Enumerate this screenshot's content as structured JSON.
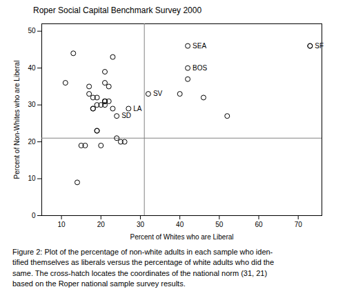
{
  "chart_data": {
    "type": "scatter",
    "title": "Roper Social Capital Benchmark Survey 2000",
    "xlabel": "Percent of Whites who are Liberal",
    "ylabel": "Percent of Non-Whites who are Liberal",
    "xlim": [
      5,
      76
    ],
    "ylim": [
      0,
      52
    ],
    "xticks": [
      10,
      20,
      30,
      40,
      50,
      60,
      70
    ],
    "yticks": [
      0,
      10,
      20,
      30,
      40,
      50
    ],
    "grid": false,
    "color": "#000000",
    "marker": "open circle",
    "x": [
      11,
      13,
      14,
      15,
      16,
      17,
      17,
      18,
      18,
      18,
      19,
      19,
      19,
      19,
      20,
      20,
      21,
      21,
      21,
      21,
      21,
      21,
      22,
      22,
      23,
      23,
      24,
      25,
      26,
      40,
      42,
      46,
      52,
      73
    ],
    "values": [
      36,
      44,
      9,
      19,
      19,
      35,
      33,
      32,
      29,
      29,
      32,
      30,
      23,
      23,
      30,
      19,
      39,
      36,
      31,
      31,
      31,
      30,
      35,
      31,
      43,
      29,
      21,
      20,
      20,
      33,
      37,
      32,
      27,
      46
    ],
    "annotations": [
      {
        "text": "SEA",
        "x": 42,
        "y": 46
      },
      {
        "text": "BOS",
        "x": 42,
        "y": 40
      },
      {
        "text": "SV",
        "x": 32,
        "y": 33
      },
      {
        "text": "LA",
        "x": 27,
        "y": 29
      },
      {
        "text": "SD",
        "x": 24,
        "y": 27
      },
      {
        "text": "SF",
        "x": 73,
        "y": 46
      }
    ],
    "crosshatch": {
      "x": 31,
      "y": 21,
      "color": "#808080"
    },
    "caption": [
      "Figure 2: Plot of the percentage of non-white adults in each sample who iden-",
      "tified themselves as liberals versus the percentage of white adults who did the",
      "same. The cross-hatch locates the coordinates of the national norm (31, 21)",
      "based on the Roper national sample survey results."
    ]
  }
}
